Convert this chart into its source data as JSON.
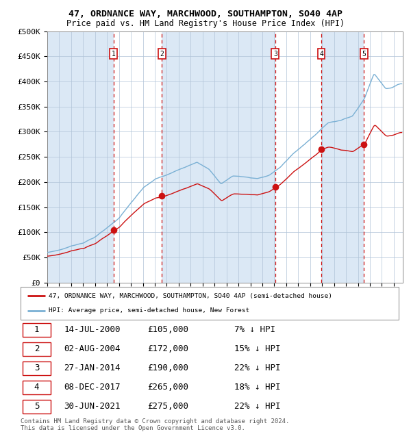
{
  "title_line1": "47, ORDNANCE WAY, MARCHWOOD, SOUTHAMPTON, SO40 4AP",
  "title_line2": "Price paid vs. HM Land Registry's House Price Index (HPI)",
  "ylabel_ticks": [
    "£0",
    "£50K",
    "£100K",
    "£150K",
    "£200K",
    "£250K",
    "£300K",
    "£350K",
    "£400K",
    "£450K",
    "£500K"
  ],
  "ytick_vals": [
    0,
    50000,
    100000,
    150000,
    200000,
    250000,
    300000,
    350000,
    400000,
    450000,
    500000
  ],
  "ylim": [
    0,
    500000
  ],
  "xlim_start": 1995.0,
  "xlim_end": 2024.75,
  "sale_dates": [
    2000.54,
    2004.59,
    2014.08,
    2017.93,
    2021.5
  ],
  "sale_prices": [
    105000,
    172000,
    190000,
    265000,
    275000
  ],
  "sale_labels": [
    "1",
    "2",
    "3",
    "4",
    "5"
  ],
  "hpi_color": "#7ab0d4",
  "price_color": "#cc1111",
  "vline_color": "#cc1111",
  "bg_shaded": "#dbe8f5",
  "bg_white": "#ffffff",
  "grid_color": "#b0c4d8",
  "legend_label_red": "47, ORDNANCE WAY, MARCHWOOD, SOUTHAMPTON, SO40 4AP (semi-detached house)",
  "legend_label_blue": "HPI: Average price, semi-detached house, New Forest",
  "table_rows": [
    [
      "1",
      "14-JUL-2000",
      "£105,000",
      "7% ↓ HPI"
    ],
    [
      "2",
      "02-AUG-2004",
      "£172,000",
      "15% ↓ HPI"
    ],
    [
      "3",
      "27-JAN-2014",
      "£190,000",
      "22% ↓ HPI"
    ],
    [
      "4",
      "08-DEC-2017",
      "£265,000",
      "18% ↓ HPI"
    ],
    [
      "5",
      "30-JUN-2021",
      "£275,000",
      "22% ↓ HPI"
    ]
  ],
  "footer": "Contains HM Land Registry data © Crown copyright and database right 2024.\nThis data is licensed under the Open Government Licence v3.0."
}
